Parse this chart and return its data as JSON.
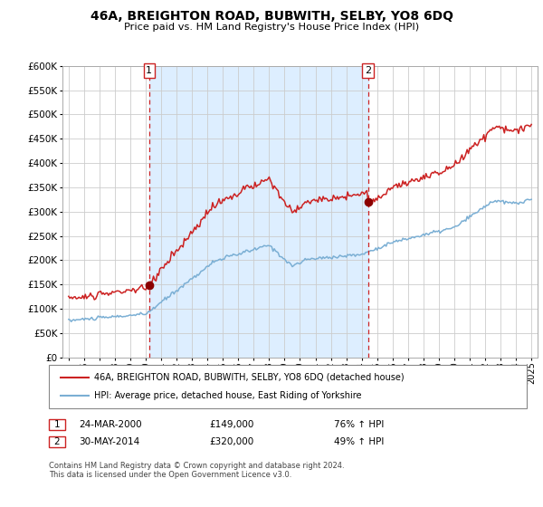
{
  "title": "46A, BREIGHTON ROAD, BUBWITH, SELBY, YO8 6DQ",
  "subtitle": "Price paid vs. HM Land Registry's House Price Index (HPI)",
  "legend_line1": "46A, BREIGHTON ROAD, BUBWITH, SELBY, YO8 6DQ (detached house)",
  "legend_line2": "HPI: Average price, detached house, East Riding of Yorkshire",
  "transaction1_date": "24-MAR-2000",
  "transaction1_price": 149000,
  "transaction1_label": "76% ↑ HPI",
  "transaction2_date": "30-MAY-2014",
  "transaction2_price": 320000,
  "transaction2_label": "49% ↑ HPI",
  "footer": "Contains HM Land Registry data © Crown copyright and database right 2024.\nThis data is licensed under the Open Government Licence v3.0.",
  "hpi_color": "#7BAFD4",
  "price_color": "#cc2222",
  "marker_color": "#8B0000",
  "vline_color": "#cc2222",
  "bg_color": "#ddeeff",
  "grid_color": "#cccccc",
  "ylim": [
    0,
    600000
  ],
  "yticks": [
    0,
    50000,
    100000,
    150000,
    200000,
    250000,
    300000,
    350000,
    400000,
    450000,
    500000,
    550000,
    600000
  ],
  "year_start": 1995,
  "year_end": 2025,
  "transaction1_year": 2000.22,
  "transaction2_year": 2014.41
}
